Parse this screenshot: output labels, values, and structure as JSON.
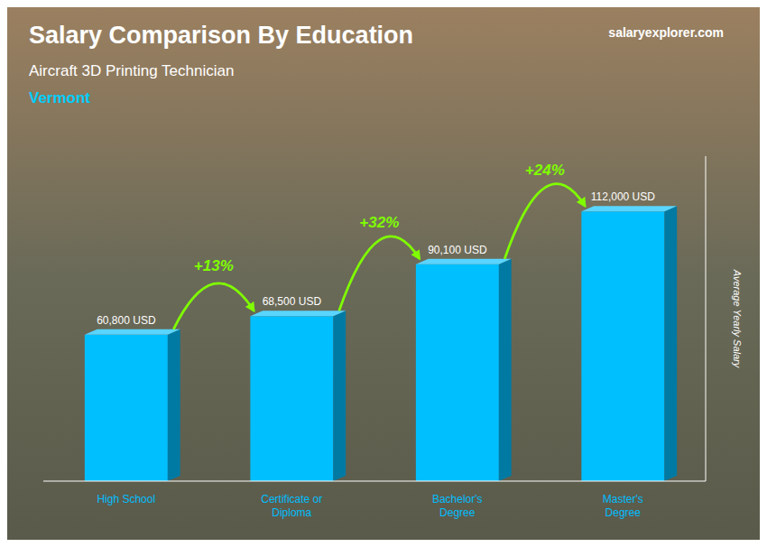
{
  "chart_data": {
    "type": "bar",
    "title": "Salary Comparison By Education",
    "subtitle": "Aircraft 3D Printing Technician",
    "ylabel": "Average Yearly Salary",
    "categories": [
      "High School",
      "Certificate or\nDiploma",
      "Bachelor's\nDegree",
      "Master's\nDegree"
    ],
    "values": [
      60800,
      68500,
      90100,
      112000
    ],
    "value_labels": [
      "60,800 USD",
      "68,500 USD",
      "90,100 USD",
      "112,000 USD"
    ],
    "data_labels": true,
    "color": "#00BFFF",
    "ylim": [
      0,
      135000
    ],
    "yticks": [],
    "tick_labels": "x",
    "grid": false,
    "annotations": [
      {
        "text": "Vermont",
        "color": "#00CFFF"
      },
      {
        "text": "salaryexplorer.com"
      },
      {
        "text": "+13%",
        "from": "High School",
        "to": "Certificate or\nDiploma",
        "color": "#7FFF00"
      },
      {
        "text": "+32%",
        "from": "Certificate or\nDiploma",
        "to": "Bachelor's\nDegree",
        "color": "#7FFF00"
      },
      {
        "text": "+24%",
        "from": "Bachelor's\nDegree",
        "to": "Master's\nDegree",
        "color": "#7FFF00"
      }
    ]
  }
}
